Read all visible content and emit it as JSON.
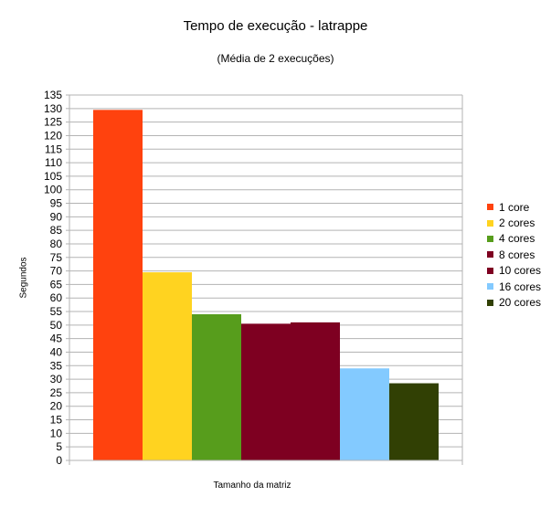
{
  "chart_data": {
    "type": "bar",
    "title": "Tempo de execução - latrappe",
    "subtitle": "(Média de 2 execuções)",
    "xlabel": "Tamanho da matriz",
    "ylabel": "Segundos",
    "ylim": [
      0,
      135
    ],
    "ytick_step": 5,
    "grid": true,
    "legend": "right",
    "series": [
      {
        "name": "1 core",
        "value": 129.5,
        "color": "#ff420e"
      },
      {
        "name": "2 cores",
        "value": 69.5,
        "color": "#ffd320"
      },
      {
        "name": "4 cores",
        "value": 54,
        "color": "#579d1c"
      },
      {
        "name": "8 cores",
        "value": 50.5,
        "color": "#7e0021"
      },
      {
        "name": "10 cores",
        "value": 51,
        "color": "#7e0021"
      },
      {
        "name": "16 cores",
        "value": 34,
        "color": "#83caff"
      },
      {
        "name": "20 cores",
        "value": 28.5,
        "color": "#314004"
      }
    ]
  }
}
